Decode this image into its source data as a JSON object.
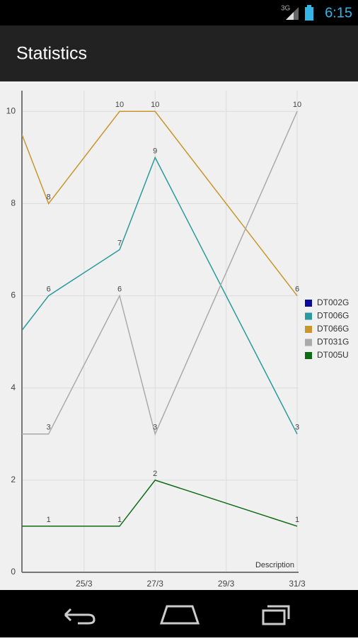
{
  "status_bar": {
    "network": "3G",
    "time": "6:15"
  },
  "app_bar": {
    "title": "Statistics"
  },
  "chart_data": {
    "type": "line",
    "x_label": "Description",
    "x": [
      23,
      24,
      26,
      27,
      31
    ],
    "xlim": [
      23.25,
      31
    ],
    "xticks": [
      {
        "value": 25,
        "label": "25/3"
      },
      {
        "value": 27,
        "label": "27/3"
      },
      {
        "value": 29,
        "label": "29/3"
      },
      {
        "value": 31,
        "label": "31/3"
      }
    ],
    "ylim": [
      0,
      10.45
    ],
    "yticks": [
      0,
      2,
      4,
      6,
      8,
      10
    ],
    "grid": true,
    "legend": "right",
    "series": [
      {
        "name": "DT002G",
        "color": "#0b0b99",
        "values": [
          null,
          null,
          null,
          null,
          null
        ]
      },
      {
        "name": "DT006G",
        "color": "#2a9a9c",
        "values": [
          5,
          6,
          7,
          9,
          3
        ]
      },
      {
        "name": "DT066G",
        "color": "#c8962c",
        "values": [
          10,
          8,
          10,
          10,
          6
        ]
      },
      {
        "name": "DT031G",
        "color": "#aaaaaa",
        "values": [
          3,
          3,
          6,
          3,
          10
        ]
      },
      {
        "name": "DT005U",
        "color": "#0d6b12",
        "values": [
          1,
          1,
          1,
          2,
          1
        ]
      }
    ]
  }
}
